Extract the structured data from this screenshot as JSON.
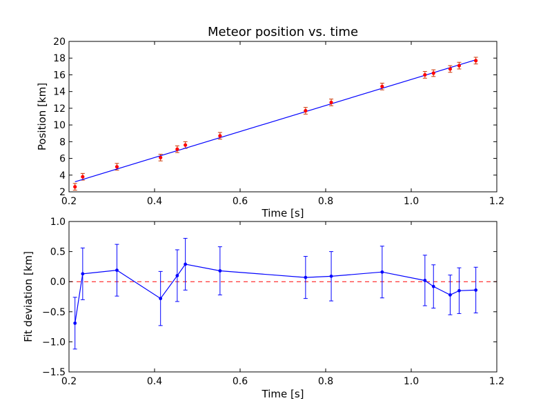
{
  "chart_data": [
    {
      "type": "scatter",
      "title": "Meteor position vs. time",
      "xlabel": "Time [s]",
      "ylabel": "Position [km]",
      "xlim": [
        0.2,
        1.2
      ],
      "ylim": [
        2,
        20
      ],
      "xticks": [
        "0.2",
        "0.4",
        "0.6",
        "0.8",
        "1.0",
        "1.2"
      ],
      "yticks": [
        "2",
        "4",
        "6",
        "8",
        "10",
        "12",
        "14",
        "16",
        "18",
        "20"
      ],
      "grid": false,
      "series": [
        {
          "kind": "points-with-errorbars",
          "color": "#ff0000",
          "errorbar_color": "#cc3300",
          "points": [
            {
              "x": 0.214,
              "y": 2.6,
              "err": 0.4
            },
            {
              "x": 0.232,
              "y": 3.8,
              "err": 0.4
            },
            {
              "x": 0.312,
              "y": 5.0,
              "err": 0.4
            },
            {
              "x": 0.414,
              "y": 6.1,
              "err": 0.4
            },
            {
              "x": 0.453,
              "y": 7.1,
              "err": 0.4
            },
            {
              "x": 0.472,
              "y": 7.6,
              "err": 0.4
            },
            {
              "x": 0.553,
              "y": 8.7,
              "err": 0.4
            },
            {
              "x": 0.753,
              "y": 11.7,
              "err": 0.4
            },
            {
              "x": 0.813,
              "y": 12.7,
              "err": 0.4
            },
            {
              "x": 0.932,
              "y": 14.6,
              "err": 0.4
            },
            {
              "x": 1.032,
              "y": 16.0,
              "err": 0.4
            },
            {
              "x": 1.052,
              "y": 16.2,
              "err": 0.4
            },
            {
              "x": 1.091,
              "y": 16.7,
              "err": 0.4
            },
            {
              "x": 1.112,
              "y": 17.1,
              "err": 0.4
            },
            {
              "x": 1.151,
              "y": 17.7,
              "err": 0.4
            }
          ]
        },
        {
          "kind": "fit-line",
          "color": "#0000ff",
          "x": [
            0.214,
            1.151
          ],
          "y": [
            3.2,
            17.8
          ]
        }
      ]
    },
    {
      "type": "line",
      "xlabel": "Time [s]",
      "ylabel": "Fit deviation [km]",
      "xlim": [
        0.2,
        1.2
      ],
      "ylim": [
        -1.5,
        1.0
      ],
      "xticks": [
        "0.2",
        "0.4",
        "0.6",
        "0.8",
        "1.0",
        "1.2"
      ],
      "yticks": [
        "−1.5",
        "−1.0",
        "−0.5",
        "0.0",
        "0.5",
        "1.0"
      ],
      "grid": false,
      "zero_line": {
        "y": 0,
        "color": "#ff0000",
        "style": "dashed"
      },
      "series": [
        {
          "kind": "line-with-errorbars",
          "color": "#0000ff",
          "points": [
            {
              "x": 0.214,
              "y": -0.69,
              "err": 0.43
            },
            {
              "x": 0.232,
              "y": 0.13,
              "err": 0.43
            },
            {
              "x": 0.312,
              "y": 0.19,
              "err": 0.43
            },
            {
              "x": 0.414,
              "y": -0.28,
              "err": 0.45
            },
            {
              "x": 0.453,
              "y": 0.1,
              "err": 0.43
            },
            {
              "x": 0.472,
              "y": 0.29,
              "err": 0.43
            },
            {
              "x": 0.553,
              "y": 0.18,
              "err": 0.4
            },
            {
              "x": 0.753,
              "y": 0.07,
              "err": 0.35
            },
            {
              "x": 0.813,
              "y": 0.09,
              "err": 0.41
            },
            {
              "x": 0.932,
              "y": 0.16,
              "err": 0.43
            },
            {
              "x": 1.032,
              "y": 0.02,
              "err": 0.42
            },
            {
              "x": 1.052,
              "y": -0.08,
              "err": 0.36
            },
            {
              "x": 1.091,
              "y": -0.22,
              "err": 0.33
            },
            {
              "x": 1.112,
              "y": -0.15,
              "err": 0.38
            },
            {
              "x": 1.151,
              "y": -0.14,
              "err": 0.38
            }
          ]
        }
      ]
    }
  ]
}
